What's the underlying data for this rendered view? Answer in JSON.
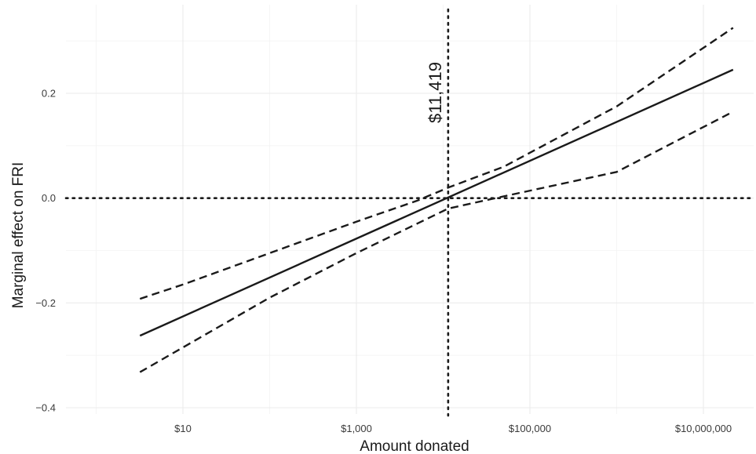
{
  "chart_data": {
    "type": "line",
    "title": "",
    "xlabel": "Amount donated",
    "ylabel": "Marginal effect on FRI",
    "x_scale": "log10",
    "xlim": [
      10,
      30000000
    ],
    "ylim": [
      -0.4,
      0.33
    ],
    "x_ticks": [
      {
        "value": 10,
        "label": "$10"
      },
      {
        "value": 1000,
        "label": "$1,000"
      },
      {
        "value": 100000,
        "label": "$100,000"
      },
      {
        "value": 10000000,
        "label": "$10,000,000"
      }
    ],
    "y_ticks": [
      {
        "value": -0.4,
        "label": "−0.4"
      },
      {
        "value": -0.2,
        "label": "−0.2"
      },
      {
        "value": 0.0,
        "label": "0.0"
      },
      {
        "value": 0.2,
        "label": "0.2"
      }
    ],
    "grid": true,
    "series": [
      {
        "style": "solid",
        "x": [
          1,
          22000000
        ],
        "y": [
          -0.3,
          0.245
        ]
      },
      {
        "style": "dashed",
        "x": [
          1,
          10,
          100,
          1000,
          5000,
          11419,
          50000,
          1000000,
          22000000
        ],
        "y": [
          -0.22,
          -0.165,
          -0.105,
          -0.045,
          -0.005,
          0.02,
          0.06,
          0.175,
          0.325
        ]
      },
      {
        "style": "dashed",
        "x": [
          1,
          10,
          100,
          1000,
          11419,
          40000,
          1000000,
          22000000
        ],
        "y": [
          -0.38,
          -0.285,
          -0.19,
          -0.105,
          -0.02,
          0.0,
          0.05,
          0.165
        ]
      }
    ],
    "reference_lines": [
      {
        "orientation": "horizontal",
        "value": 0.0,
        "style": "dotted"
      },
      {
        "orientation": "vertical",
        "value": 11419,
        "style": "dotted",
        "label": "$11,419"
      }
    ]
  }
}
